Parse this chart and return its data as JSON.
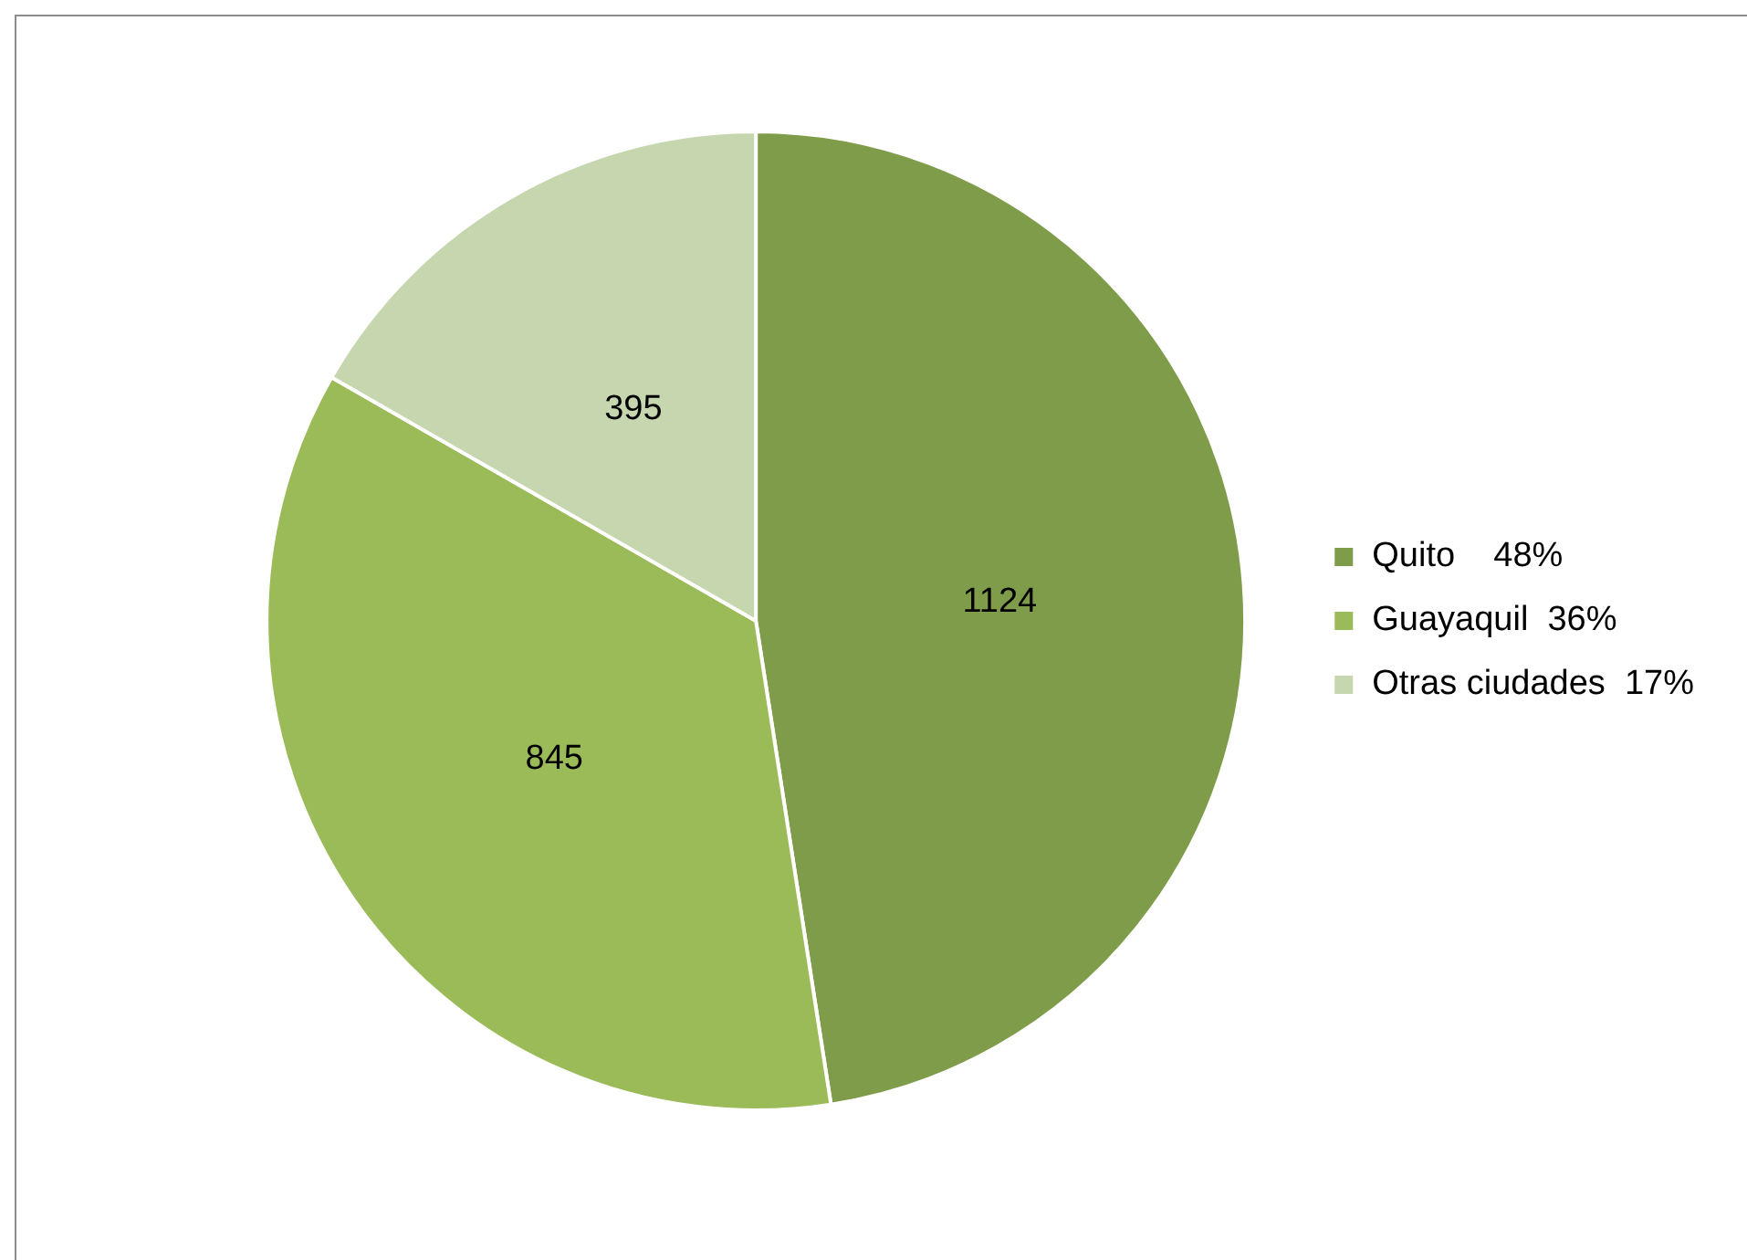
{
  "chart_data": {
    "type": "pie",
    "categories": [
      "Quito    48%",
      "Guayaquil  36%",
      "Otras ciudades  17%"
    ],
    "values": [
      1124,
      845,
      395
    ],
    "colors": [
      "#7f9c4a",
      "#9bbb59",
      "#c6d6ae"
    ],
    "data_labels": true,
    "legend": "right"
  }
}
